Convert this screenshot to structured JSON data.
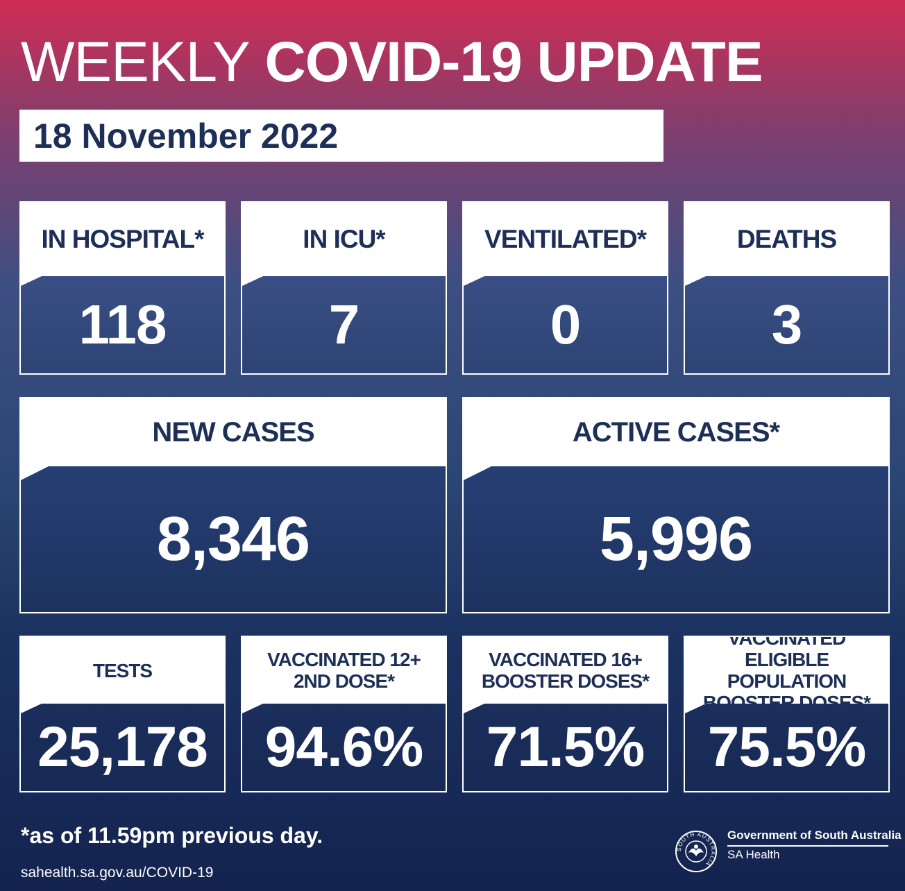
{
  "header": {
    "title_light": "WEEKLY",
    "title_bold": "COVID-19 UPDATE",
    "date": "18 November 2022"
  },
  "stats_row1": [
    {
      "label": "IN HOSPITAL*",
      "value": "118"
    },
    {
      "label": "IN ICU*",
      "value": "7"
    },
    {
      "label": "VENTILATED*",
      "value": "0"
    },
    {
      "label": "DEATHS",
      "value": "3"
    }
  ],
  "stats_row2": [
    {
      "label": "NEW CASES",
      "value": "8,346"
    },
    {
      "label": "ACTIVE CASES*",
      "value": "5,996"
    }
  ],
  "stats_row3": [
    {
      "label_lines": [
        "TESTS"
      ],
      "value": "25,178"
    },
    {
      "label_lines": [
        "VACCINATED 12+",
        "2ND DOSE*"
      ],
      "value": "94.6%"
    },
    {
      "label_lines": [
        "VACCINATED 16+",
        "BOOSTER DOSES*"
      ],
      "value": "71.5%"
    },
    {
      "label_lines": [
        "VACCINATED",
        "ELIGIBLE POPULATION",
        "BOOSTER DOSES*"
      ],
      "value": "75.5%"
    }
  ],
  "footer": {
    "note": "*as of 11.59pm previous day.",
    "url": "sahealth.sa.gov.au/COVID-19",
    "org": "Government of South Australia",
    "dept": "SA Health",
    "seal_text": "SOUTH AUSTRALIA"
  },
  "colors": {
    "navy_text": "#1d2f57",
    "gradient_top": "#d02c53",
    "gradient_bottom": "#14234f"
  },
  "icons": [
    "sa-government-seal-icon"
  ]
}
